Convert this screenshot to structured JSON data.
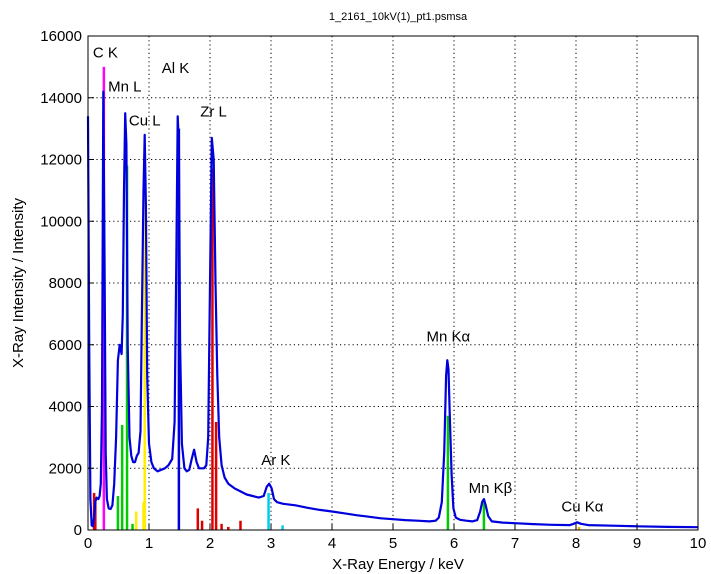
{
  "chart_data": {
    "type": "line",
    "title": "1_2161_10kV(1)_pt1.psmsa",
    "xlabel": "X-Ray Energy / keV",
    "ylabel": "X-Ray Intensity / Intensity",
    "xlim": [
      0,
      10
    ],
    "ylim": [
      0,
      16000
    ],
    "x_ticks": [
      0,
      1,
      2,
      3,
      4,
      5,
      6,
      7,
      8,
      9,
      10
    ],
    "y_ticks": [
      0,
      2000,
      4000,
      6000,
      8000,
      10000,
      12000,
      14000,
      16000
    ],
    "grid": true,
    "grid_style": "dotted",
    "spectrum_color": "#0000dd",
    "spectrum": [
      [
        0.0,
        13400
      ],
      [
        0.02,
        6000
      ],
      [
        0.04,
        1000
      ],
      [
        0.06,
        150
      ],
      [
        0.08,
        120
      ],
      [
        0.1,
        400
      ],
      [
        0.12,
        900
      ],
      [
        0.14,
        1050
      ],
      [
        0.17,
        1000
      ],
      [
        0.19,
        1100
      ],
      [
        0.21,
        1500
      ],
      [
        0.23,
        4000
      ],
      [
        0.25,
        14200
      ],
      [
        0.27,
        9000
      ],
      [
        0.29,
        2500
      ],
      [
        0.31,
        1000
      ],
      [
        0.34,
        700
      ],
      [
        0.37,
        680
      ],
      [
        0.4,
        800
      ],
      [
        0.43,
        1500
      ],
      [
        0.46,
        3000
      ],
      [
        0.49,
        5500
      ],
      [
        0.52,
        6000
      ],
      [
        0.55,
        5700
      ],
      [
        0.57,
        7000
      ],
      [
        0.59,
        11000
      ],
      [
        0.61,
        13500
      ],
      [
        0.63,
        12500
      ],
      [
        0.65,
        6000
      ],
      [
        0.68,
        3000
      ],
      [
        0.71,
        2400
      ],
      [
        0.74,
        2200
      ],
      [
        0.77,
        2200
      ],
      [
        0.8,
        2400
      ],
      [
        0.83,
        2500
      ],
      [
        0.86,
        3200
      ],
      [
        0.88,
        6500
      ],
      [
        0.91,
        11000
      ],
      [
        0.93,
        12800
      ],
      [
        0.95,
        10500
      ],
      [
        0.97,
        5000
      ],
      [
        1.0,
        2800
      ],
      [
        1.04,
        2200
      ],
      [
        1.08,
        2000
      ],
      [
        1.14,
        1900
      ],
      [
        1.2,
        1950
      ],
      [
        1.26,
        2000
      ],
      [
        1.32,
        2100
      ],
      [
        1.38,
        2300
      ],
      [
        1.42,
        3500
      ],
      [
        1.45,
        9000
      ],
      [
        1.47,
        13400
      ],
      [
        1.49,
        12500
      ],
      [
        1.51,
        6000
      ],
      [
        1.54,
        2800
      ],
      [
        1.58,
        2000
      ],
      [
        1.62,
        1900
      ],
      [
        1.66,
        1950
      ],
      [
        1.7,
        2300
      ],
      [
        1.74,
        2600
      ],
      [
        1.78,
        2200
      ],
      [
        1.82,
        2000
      ],
      [
        1.86,
        2000
      ],
      [
        1.9,
        2000
      ],
      [
        1.94,
        2100
      ],
      [
        1.97,
        3000
      ],
      [
        2.0,
        8000
      ],
      [
        2.03,
        12700
      ],
      [
        2.06,
        12000
      ],
      [
        2.09,
        8000
      ],
      [
        2.12,
        5000
      ],
      [
        2.15,
        3000
      ],
      [
        2.19,
        2100
      ],
      [
        2.24,
        1700
      ],
      [
        2.3,
        1500
      ],
      [
        2.4,
        1350
      ],
      [
        2.5,
        1250
      ],
      [
        2.6,
        1150
      ],
      [
        2.7,
        1100
      ],
      [
        2.8,
        1050
      ],
      [
        2.88,
        1100
      ],
      [
        2.93,
        1400
      ],
      [
        2.97,
        1500
      ],
      [
        3.01,
        1350
      ],
      [
        3.05,
        1000
      ],
      [
        3.1,
        900
      ],
      [
        3.2,
        850
      ],
      [
        3.4,
        800
      ],
      [
        3.6,
        720
      ],
      [
        3.8,
        650
      ],
      [
        4.0,
        600
      ],
      [
        4.2,
        540
      ],
      [
        4.4,
        480
      ],
      [
        4.6,
        430
      ],
      [
        4.8,
        380
      ],
      [
        5.0,
        350
      ],
      [
        5.2,
        320
      ],
      [
        5.4,
        300
      ],
      [
        5.6,
        280
      ],
      [
        5.7,
        300
      ],
      [
        5.75,
        400
      ],
      [
        5.8,
        900
      ],
      [
        5.84,
        2500
      ],
      [
        5.87,
        5000
      ],
      [
        5.89,
        5500
      ],
      [
        5.91,
        5200
      ],
      [
        5.93,
        3800
      ],
      [
        5.96,
        1800
      ],
      [
        5.99,
        700
      ],
      [
        6.03,
        400
      ],
      [
        6.1,
        330
      ],
      [
        6.2,
        300
      ],
      [
        6.3,
        280
      ],
      [
        6.38,
        320
      ],
      [
        6.43,
        600
      ],
      [
        6.46,
        900
      ],
      [
        6.49,
        1000
      ],
      [
        6.52,
        800
      ],
      [
        6.56,
        450
      ],
      [
        6.62,
        280
      ],
      [
        6.8,
        240
      ],
      [
        7.0,
        220
      ],
      [
        7.3,
        190
      ],
      [
        7.6,
        170
      ],
      [
        7.9,
        160
      ],
      [
        7.96,
        200
      ],
      [
        8.02,
        250
      ],
      [
        8.08,
        200
      ],
      [
        8.2,
        160
      ],
      [
        8.6,
        140
      ],
      [
        9.0,
        120
      ],
      [
        9.5,
        100
      ],
      [
        10.0,
        90
      ]
    ],
    "markers": [
      {
        "x": 0.1,
        "h": 1200,
        "color": "#dd0000"
      },
      {
        "x": 0.12,
        "h": 900,
        "color": "#dd0000"
      },
      {
        "x": 0.26,
        "h": 15000,
        "color": "#ff00ff"
      },
      {
        "x": 0.49,
        "h": 1100,
        "color": "#00cc00"
      },
      {
        "x": 0.56,
        "h": 3400,
        "color": "#00cc00"
      },
      {
        "x": 0.64,
        "h": 11800,
        "color": "#00cc00"
      },
      {
        "x": 0.73,
        "h": 200,
        "color": "#00cc00"
      },
      {
        "x": 0.79,
        "h": 600,
        "color": "#ffee00"
      },
      {
        "x": 0.91,
        "h": 900,
        "color": "#ffee00"
      },
      {
        "x": 0.93,
        "h": 12500,
        "color": "#ffee00"
      },
      {
        "x": 1.49,
        "h": 13000,
        "color": "#0000dd"
      },
      {
        "x": 1.8,
        "h": 700,
        "color": "#dd0000"
      },
      {
        "x": 1.87,
        "h": 300,
        "color": "#dd0000"
      },
      {
        "x": 2.04,
        "h": 11700,
        "color": "#dd0000"
      },
      {
        "x": 2.1,
        "h": 3500,
        "color": "#dd0000"
      },
      {
        "x": 2.19,
        "h": 200,
        "color": "#dd0000"
      },
      {
        "x": 2.3,
        "h": 100,
        "color": "#dd0000"
      },
      {
        "x": 2.5,
        "h": 300,
        "color": "#dd0000"
      },
      {
        "x": 2.96,
        "h": 1200,
        "color": "#00ccee"
      },
      {
        "x": 3.19,
        "h": 150,
        "color": "#00ccee"
      },
      {
        "x": 5.9,
        "h": 3700,
        "color": "#00cc00"
      },
      {
        "x": 6.49,
        "h": 900,
        "color": "#00cc00"
      },
      {
        "x": 8.05,
        "h": 100,
        "color": "#ffaa00"
      }
    ],
    "peak_labels": [
      {
        "text": "C K",
        "x": 0.08,
        "y": 15300
      },
      {
        "text": "Mn L",
        "x": 0.33,
        "y": 14200
      },
      {
        "text": "Al K",
        "x": 1.21,
        "y": 14800
      },
      {
        "text": "Cu L",
        "x": 0.67,
        "y": 13100
      },
      {
        "text": "Zr L",
        "x": 1.84,
        "y": 13400
      },
      {
        "text": "Ar K",
        "x": 2.84,
        "y": 2100
      },
      {
        "text": "Mn Kα",
        "x": 5.55,
        "y": 6100
      },
      {
        "text": "Mn Kβ",
        "x": 6.24,
        "y": 1200
      },
      {
        "text": "Cu Kα",
        "x": 7.76,
        "y": 600
      }
    ]
  }
}
